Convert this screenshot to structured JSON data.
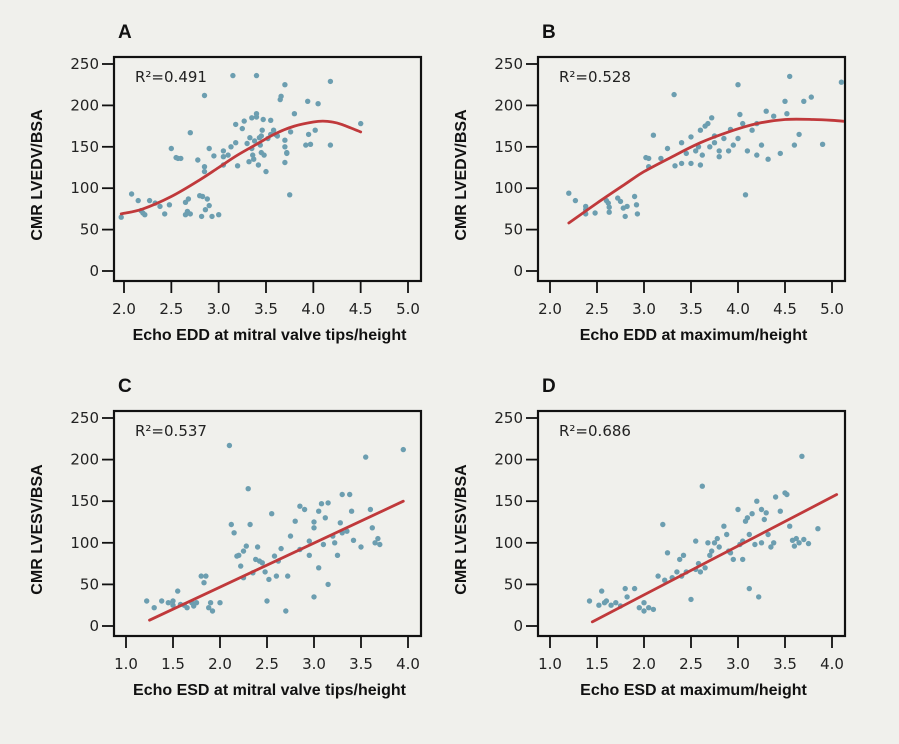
{
  "colors": {
    "background": "#f0f0ec",
    "points": "#6c9eb0",
    "fit_line": "#c0393b",
    "axis": "#111111"
  },
  "chart_data": [
    {
      "id": "A",
      "type": "scatter",
      "panel_label": "A",
      "annotation": "R²=0.491",
      "xlabel": "Echo EDD at mitral valve tips/height",
      "ylabel": "CMR LVEDV/BSA",
      "xlim": [
        2.0,
        5.0
      ],
      "ylim": [
        0,
        250
      ],
      "xticks": [
        "2.0",
        "2.5",
        "3.0",
        "3.5",
        "4.0",
        "4.5",
        "5.0"
      ],
      "yticks": [
        "0",
        "50",
        "100",
        "150",
        "200",
        "250"
      ],
      "grid": false,
      "fit": {
        "type": "polynomial",
        "x": [
          1.97,
          2.2,
          2.5,
          2.8,
          3.0,
          3.2,
          3.4,
          3.6,
          3.8,
          4.0,
          4.1,
          4.2,
          4.3,
          4.5
        ],
        "y": [
          69,
          75,
          90,
          110,
          125,
          140,
          153,
          166,
          175,
          180,
          181,
          180,
          177,
          168
        ]
      },
      "points": [
        [
          1.97,
          65
        ],
        [
          2.08,
          93
        ],
        [
          2.15,
          85
        ],
        [
          2.18,
          73
        ],
        [
          2.2,
          70
        ],
        [
          2.22,
          68
        ],
        [
          2.27,
          85
        ],
        [
          2.33,
          82
        ],
        [
          2.38,
          78
        ],
        [
          2.43,
          69
        ],
        [
          2.48,
          80
        ],
        [
          2.5,
          148
        ],
        [
          2.55,
          137
        ],
        [
          2.57,
          136
        ],
        [
          2.6,
          136
        ],
        [
          2.65,
          83
        ],
        [
          2.65,
          68
        ],
        [
          2.67,
          72
        ],
        [
          2.68,
          87
        ],
        [
          2.7,
          167
        ],
        [
          2.7,
          69
        ],
        [
          2.78,
          134
        ],
        [
          2.8,
          91
        ],
        [
          2.82,
          66
        ],
        [
          2.83,
          90
        ],
        [
          2.85,
          126
        ],
        [
          2.85,
          120
        ],
        [
          2.85,
          212
        ],
        [
          2.86,
          74
        ],
        [
          2.88,
          87
        ],
        [
          2.9,
          148
        ],
        [
          2.9,
          79
        ],
        [
          2.93,
          66
        ],
        [
          2.95,
          139
        ],
        [
          3.0,
          68
        ],
        [
          3.05,
          145
        ],
        [
          3.05,
          138
        ],
        [
          3.05,
          128
        ],
        [
          3.1,
          140
        ],
        [
          3.13,
          150
        ],
        [
          3.15,
          236
        ],
        [
          3.18,
          177
        ],
        [
          3.18,
          155
        ],
        [
          3.2,
          127
        ],
        [
          3.25,
          172
        ],
        [
          3.27,
          181
        ],
        [
          3.3,
          154
        ],
        [
          3.32,
          132
        ],
        [
          3.33,
          161
        ],
        [
          3.35,
          185
        ],
        [
          3.35,
          148
        ],
        [
          3.36,
          140
        ],
        [
          3.37,
          135
        ],
        [
          3.38,
          157
        ],
        [
          3.4,
          236
        ],
        [
          3.4,
          190
        ],
        [
          3.4,
          186
        ],
        [
          3.42,
          128
        ],
        [
          3.43,
          161
        ],
        [
          3.44,
          152
        ],
        [
          3.45,
          143
        ],
        [
          3.45,
          163
        ],
        [
          3.46,
          170
        ],
        [
          3.47,
          183
        ],
        [
          3.48,
          140
        ],
        [
          3.5,
          120
        ],
        [
          3.52,
          160
        ],
        [
          3.55,
          165
        ],
        [
          3.55,
          182
        ],
        [
          3.58,
          170
        ],
        [
          3.6,
          165
        ],
        [
          3.62,
          163
        ],
        [
          3.65,
          207
        ],
        [
          3.66,
          211
        ],
        [
          3.7,
          225
        ],
        [
          3.7,
          150
        ],
        [
          3.7,
          158
        ],
        [
          3.72,
          142
        ],
        [
          3.7,
          131
        ],
        [
          3.72,
          143
        ],
        [
          3.75,
          92
        ],
        [
          3.76,
          168
        ],
        [
          3.8,
          190
        ],
        [
          3.92,
          152
        ],
        [
          3.94,
          205
        ],
        [
          3.95,
          165
        ],
        [
          3.97,
          153
        ],
        [
          4.02,
          170
        ],
        [
          4.05,
          202
        ],
        [
          4.18,
          229
        ],
        [
          4.18,
          152
        ],
        [
          4.5,
          178
        ]
      ]
    },
    {
      "id": "B",
      "type": "scatter",
      "panel_label": "B",
      "annotation": "R²=0.528",
      "xlabel": "Echo EDD at maximum/height",
      "ylabel": "CMR LVEDV/BSA",
      "xlim": [
        2.0,
        5.0
      ],
      "ylim": [
        0,
        250
      ],
      "xticks": [
        "2.0",
        "2.5",
        "3.0",
        "3.5",
        "4.0",
        "4.5",
        "5.0"
      ],
      "yticks": [
        "0",
        "50",
        "100",
        "150",
        "200",
        "250"
      ],
      "grid": false,
      "fit": {
        "type": "polynomial",
        "x": [
          2.2,
          2.5,
          2.8,
          3.0,
          3.3,
          3.6,
          3.9,
          4.2,
          4.5,
          4.8,
          5.0,
          5.2
        ],
        "y": [
          58,
          82,
          105,
          120,
          138,
          155,
          168,
          178,
          183,
          183,
          182,
          180
        ]
      },
      "points": [
        [
          2.2,
          94
        ],
        [
          2.27,
          85
        ],
        [
          2.38,
          78
        ],
        [
          2.38,
          69
        ],
        [
          2.38,
          74
        ],
        [
          2.48,
          70
        ],
        [
          2.6,
          85
        ],
        [
          2.62,
          82
        ],
        [
          2.63,
          77
        ],
        [
          2.63,
          71
        ],
        [
          2.72,
          88
        ],
        [
          2.75,
          84
        ],
        [
          2.78,
          76
        ],
        [
          2.8,
          66
        ],
        [
          2.82,
          78
        ],
        [
          2.9,
          90
        ],
        [
          2.92,
          80
        ],
        [
          2.93,
          69
        ],
        [
          3.02,
          137
        ],
        [
          3.05,
          136
        ],
        [
          3.05,
          126
        ],
        [
          3.1,
          164
        ],
        [
          3.18,
          136
        ],
        [
          3.25,
          148
        ],
        [
          3.32,
          213
        ],
        [
          3.33,
          127
        ],
        [
          3.4,
          130
        ],
        [
          3.45,
          142
        ],
        [
          3.58,
          150
        ],
        [
          3.65,
          175
        ],
        [
          3.68,
          178
        ],
        [
          3.72,
          185
        ],
        [
          3.75,
          155
        ],
        [
          3.75,
          163
        ],
        [
          3.8,
          145
        ],
        [
          3.8,
          138
        ],
        [
          3.9,
          145
        ],
        [
          4.0,
          225
        ],
        [
          4.02,
          189
        ],
        [
          4.05,
          178
        ],
        [
          4.1,
          145
        ],
        [
          4.15,
          170
        ],
        [
          4.2,
          178
        ],
        [
          4.2,
          140
        ],
        [
          4.25,
          152
        ],
        [
          4.3,
          193
        ],
        [
          4.32,
          135
        ],
        [
          4.38,
          187
        ],
        [
          4.45,
          142
        ],
        [
          4.5,
          205
        ],
        [
          4.52,
          190
        ],
        [
          4.55,
          235
        ],
        [
          4.6,
          152
        ],
        [
          4.65,
          165
        ],
        [
          4.7,
          205
        ],
        [
          4.78,
          210
        ],
        [
          4.9,
          153
        ],
        [
          5.1,
          228
        ],
        [
          3.4,
          155
        ],
        [
          3.5,
          162
        ],
        [
          3.55,
          145
        ],
        [
          3.6,
          170
        ],
        [
          3.62,
          140
        ],
        [
          3.7,
          150
        ],
        [
          3.85,
          160
        ],
        [
          3.92,
          171
        ],
        [
          3.95,
          152
        ],
        [
          4.0,
          160
        ],
        [
          3.5,
          130
        ],
        [
          3.6,
          128
        ],
        [
          4.08,
          92
        ]
      ]
    },
    {
      "id": "C",
      "type": "scatter",
      "panel_label": "C",
      "annotation": "R²=0.537",
      "xlabel": "Echo ESD at mitral valve tips/height",
      "ylabel": "CMR LVESV/BSA",
      "xlim": [
        1.0,
        4.0
      ],
      "ylim": [
        0,
        250
      ],
      "xticks": [
        "1.0",
        "1.5",
        "2.0",
        "2.5",
        "3.0",
        "3.5",
        "4.0"
      ],
      "yticks": [
        "0",
        "50",
        "100",
        "150",
        "200",
        "250"
      ],
      "grid": false,
      "fit": {
        "type": "linear",
        "x": [
          1.25,
          3.95
        ],
        "y": [
          7,
          150
        ]
      },
      "points": [
        [
          1.22,
          30
        ],
        [
          1.3,
          22
        ],
        [
          1.38,
          30
        ],
        [
          1.45,
          28
        ],
        [
          1.5,
          25
        ],
        [
          1.55,
          42
        ],
        [
          1.5,
          30
        ],
        [
          1.58,
          26
        ],
        [
          1.62,
          25
        ],
        [
          1.65,
          22
        ],
        [
          1.7,
          28
        ],
        [
          1.72,
          24
        ],
        [
          1.75,
          28
        ],
        [
          1.8,
          60
        ],
        [
          1.83,
          52
        ],
        [
          1.85,
          60
        ],
        [
          1.88,
          22
        ],
        [
          1.9,
          28
        ],
        [
          1.92,
          18
        ],
        [
          2.0,
          28
        ],
        [
          2.1,
          217
        ],
        [
          2.12,
          122
        ],
        [
          2.15,
          112
        ],
        [
          2.18,
          84
        ],
        [
          2.2,
          85
        ],
        [
          2.22,
          72
        ],
        [
          2.25,
          90
        ],
        [
          2.25,
          58
        ],
        [
          2.28,
          96
        ],
        [
          2.3,
          165
        ],
        [
          2.32,
          122
        ],
        [
          2.35,
          64
        ],
        [
          2.38,
          80
        ],
        [
          2.4,
          95
        ],
        [
          2.42,
          78
        ],
        [
          2.45,
          76
        ],
        [
          2.48,
          65
        ],
        [
          2.5,
          30
        ],
        [
          2.52,
          56
        ],
        [
          2.55,
          135
        ],
        [
          2.58,
          84
        ],
        [
          2.6,
          60
        ],
        [
          2.62,
          78
        ],
        [
          2.65,
          93
        ],
        [
          2.7,
          18
        ],
        [
          2.72,
          60
        ],
        [
          2.75,
          108
        ],
        [
          2.8,
          126
        ],
        [
          2.85,
          144
        ],
        [
          2.9,
          140
        ],
        [
          2.95,
          102
        ],
        [
          3.0,
          118
        ],
        [
          3.0,
          35
        ],
        [
          3.05,
          138
        ],
        [
          3.08,
          147
        ],
        [
          3.1,
          98
        ],
        [
          3.12,
          130
        ],
        [
          3.15,
          148
        ],
        [
          3.2,
          108
        ],
        [
          3.22,
          100
        ],
        [
          3.25,
          85
        ],
        [
          3.28,
          124
        ],
        [
          3.3,
          112
        ],
        [
          3.3,
          158
        ],
        [
          3.35,
          114
        ],
        [
          3.38,
          158
        ],
        [
          3.4,
          138
        ],
        [
          3.42,
          103
        ],
        [
          3.5,
          95
        ],
        [
          3.55,
          203
        ],
        [
          3.6,
          140
        ],
        [
          3.62,
          118
        ],
        [
          3.65,
          100
        ],
        [
          3.68,
          105
        ],
        [
          3.7,
          98
        ],
        [
          3.95,
          212
        ],
        [
          3.0,
          125
        ],
        [
          3.15,
          50
        ],
        [
          2.85,
          92
        ],
        [
          2.95,
          85
        ],
        [
          3.05,
          70
        ]
      ]
    },
    {
      "id": "D",
      "type": "scatter",
      "panel_label": "D",
      "annotation": "R²=0.686",
      "xlabel": "Echo ESD at maximum/height",
      "ylabel": "CMR LVESV/BSA",
      "xlim": [
        1.0,
        4.0
      ],
      "ylim": [
        0,
        250
      ],
      "xticks": [
        "1.0",
        "1.5",
        "2.0",
        "2.5",
        "3.0",
        "3.5",
        "4.0"
      ],
      "yticks": [
        "0",
        "50",
        "100",
        "150",
        "200",
        "250"
      ],
      "grid": false,
      "fit": {
        "type": "linear",
        "x": [
          1.45,
          4.05
        ],
        "y": [
          5,
          158
        ]
      },
      "points": [
        [
          1.42,
          30
        ],
        [
          1.52,
          25
        ],
        [
          1.55,
          42
        ],
        [
          1.58,
          28
        ],
        [
          1.6,
          30
        ],
        [
          1.65,
          25
        ],
        [
          1.7,
          28
        ],
        [
          1.75,
          24
        ],
        [
          1.8,
          45
        ],
        [
          1.82,
          35
        ],
        [
          1.9,
          45
        ],
        [
          1.95,
          22
        ],
        [
          2.0,
          18
        ],
        [
          2.0,
          28
        ],
        [
          2.05,
          22
        ],
        [
          2.1,
          20
        ],
        [
          2.15,
          60
        ],
        [
          2.2,
          122
        ],
        [
          2.22,
          55
        ],
        [
          2.25,
          88
        ],
        [
          2.3,
          58
        ],
        [
          2.35,
          65
        ],
        [
          2.38,
          80
        ],
        [
          2.42,
          85
        ],
        [
          2.45,
          65
        ],
        [
          2.5,
          32
        ],
        [
          2.55,
          68
        ],
        [
          2.58,
          75
        ],
        [
          2.6,
          65
        ],
        [
          2.62,
          168
        ],
        [
          2.65,
          70
        ],
        [
          2.7,
          85
        ],
        [
          2.72,
          90
        ],
        [
          2.75,
          100
        ],
        [
          2.78,
          105
        ],
        [
          2.8,
          95
        ],
        [
          2.85,
          120
        ],
        [
          2.88,
          110
        ],
        [
          2.9,
          90
        ],
        [
          2.92,
          88
        ],
        [
          2.95,
          80
        ],
        [
          3.0,
          140
        ],
        [
          3.02,
          98
        ],
        [
          3.05,
          102
        ],
        [
          3.08,
          126
        ],
        [
          3.1,
          130
        ],
        [
          3.12,
          110
        ],
        [
          3.15,
          135
        ],
        [
          3.18,
          98
        ],
        [
          3.2,
          150
        ],
        [
          3.22,
          35
        ],
        [
          3.25,
          140
        ],
        [
          3.28,
          128
        ],
        [
          3.3,
          136
        ],
        [
          3.32,
          110
        ],
        [
          3.35,
          95
        ],
        [
          3.38,
          100
        ],
        [
          3.4,
          155
        ],
        [
          3.45,
          138
        ],
        [
          3.5,
          160
        ],
        [
          3.52,
          158
        ],
        [
          3.55,
          120
        ],
        [
          3.58,
          103
        ],
        [
          3.6,
          96
        ],
        [
          3.62,
          105
        ],
        [
          3.65,
          100
        ],
        [
          3.68,
          204
        ],
        [
          3.7,
          104
        ],
        [
          3.75,
          99
        ],
        [
          3.85,
          117
        ],
        [
          2.4,
          60
        ],
        [
          2.55,
          102
        ],
        [
          2.68,
          100
        ],
        [
          3.05,
          80
        ],
        [
          3.12,
          45
        ],
        [
          3.25,
          100
        ]
      ]
    }
  ]
}
